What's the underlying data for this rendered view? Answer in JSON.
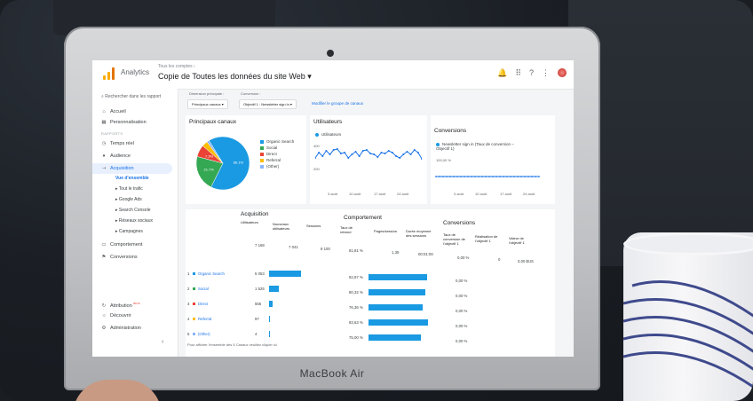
{
  "device": {
    "brand": "MacBook Air"
  },
  "topbar": {
    "app_name": "Analytics",
    "breadcrumb": "Tous les comptes  ›",
    "view_title": "Copie de Toutes les données du site Web ▾",
    "icons": [
      "notifications-icon",
      "apps-grid-icon",
      "help-icon",
      "more-vert-icon",
      "avatar"
    ]
  },
  "sidebar": {
    "search": "Rechercher dans les rapport",
    "section_rapports": "RAPPORTS",
    "items": [
      {
        "label": "Accueil",
        "icon": "home-icon"
      },
      {
        "label": "Personnalisation",
        "icon": "grid-icon"
      },
      {
        "label": "Temps réel",
        "icon": "clock-icon"
      },
      {
        "label": "Audience",
        "icon": "person-icon"
      },
      {
        "label": "Acquisition",
        "icon": "acquisition-icon"
      },
      {
        "label": "Comportement",
        "icon": "behavior-icon"
      },
      {
        "label": "Conversions",
        "icon": "flag-icon"
      }
    ],
    "acquisition_sub": [
      "Vue d'ensemble",
      "▸ Tout le trafic",
      "▸ Google Ads",
      "▸ Search Console",
      "▸ Réseaux sociaux",
      "▸ Campagnes"
    ],
    "bottom": [
      {
        "label": "Attribution",
        "badge": "BETA",
        "icon": "attribution-icon"
      },
      {
        "label": "Découvrir",
        "icon": "bulb-icon"
      },
      {
        "label": "Administration",
        "icon": "gear-icon"
      }
    ]
  },
  "controls": {
    "primary_dim_label": "Dimension principale :",
    "primary_dim_value": "Principaux canaux ▾",
    "conversion_label": "Conversion :",
    "conversion_value": "Objectif 1 : Newsletter sign in ▾",
    "modify_link": "Modifier le groupe de canaux"
  },
  "pie_card": {
    "title": "Principaux canaux",
    "legend": [
      {
        "label": "Organic Search",
        "color": "#1a9ae2"
      },
      {
        "label": "Social",
        "color": "#34a853"
      },
      {
        "label": "Direct",
        "color": "#ea4335"
      },
      {
        "label": "Referral",
        "color": "#fbbc04"
      },
      {
        "label": "(Other)",
        "color": "#8ab4f8"
      }
    ],
    "slices": [
      {
        "label": "Organic Search",
        "value": 66.1,
        "text": "66.1%"
      },
      {
        "label": "Social",
        "value": 21.7,
        "text": "21.7%"
      },
      {
        "label": "Direct",
        "value": 7.3,
        "text": "7.3%"
      },
      {
        "label": "Referral",
        "value": 3.5,
        "text": ""
      },
      {
        "label": "(Other)",
        "value": 1.4,
        "text": ""
      }
    ]
  },
  "users_card": {
    "title": "Utilisateurs",
    "legend": "Utilisateurs",
    "y_top": "400",
    "y_bottom": "200",
    "x_labels": [
      "3 août",
      "10 août",
      "17 août",
      "24 août"
    ],
    "values": [
      300,
      330,
      310,
      340,
      320,
      345,
      350,
      325,
      330,
      300,
      320,
      335,
      310,
      340,
      345,
      325,
      320,
      305,
      330,
      325,
      340,
      330,
      310,
      300,
      320,
      335,
      320,
      345,
      330,
      295
    ]
  },
  "conv_card": {
    "title": "Conversions",
    "legend": "Newsletter sign in (Taux de conversion – Objectif 1)",
    "y_top": "100,00 %",
    "x_labels": [
      "3 août",
      "10 août",
      "17 août",
      "24 août"
    ]
  },
  "table": {
    "acquisition_title": "Acquisition",
    "comportement_title": "Comportement",
    "conversions_title": "Conversions",
    "headers": {
      "utilisateurs": "Utilisateurs",
      "nouveaux": "Nouveaux utilisateurs",
      "sessions": "Sessions",
      "rebond": "Taux de rebond",
      "pages": "Pages/session",
      "duree": "Durée moyenne des sessions",
      "taux_conv": "Taux de conversion de l'objectif 1",
      "realisation": "Réalisation de l'objectif 1",
      "valeur": "Valeur de l'objectif 1"
    },
    "totals": {
      "utilisateurs": "7 168",
      "nouveaux": "7 041",
      "sessions": "8 100",
      "rebond": "81,81 %",
      "pages": "1,35",
      "duree": "00:01:00",
      "taux_conv": "0,00 %",
      "realisation": "0",
      "valeur": "0,00 $US"
    },
    "rows": [
      {
        "index": "1",
        "channel": "Organic Search",
        "color": "#1a9ae2",
        "users": "5 053",
        "users_pct": 100,
        "rebond": "82,87 %",
        "rebond_pct": 100,
        "conv": "0,00 %"
      },
      {
        "index": "2",
        "channel": "Social",
        "color": "#34a853",
        "users": "1 525",
        "users_pct": 30,
        "rebond": "80,32 %",
        "rebond_pct": 97,
        "conv": "0,00 %"
      },
      {
        "index": "3",
        "channel": "Direct",
        "color": "#ea4335",
        "users": "556",
        "users_pct": 11,
        "rebond": "76,36 %",
        "rebond_pct": 92,
        "conv": "0,00 %"
      },
      {
        "index": "4",
        "channel": "Referral",
        "color": "#fbbc04",
        "users": "97",
        "users_pct": 2,
        "rebond": "83,63 %",
        "rebond_pct": 101,
        "conv": "0,00 %"
      },
      {
        "index": "5",
        "channel": "(Other)",
        "color": "#8ab4f8",
        "users": "4",
        "users_pct": 1,
        "rebond": "75,00 %",
        "rebond_pct": 90,
        "conv": "0,00 %"
      }
    ],
    "footer": "Pour afficher l'ensemble des 5 Canaux veuillez cliquer ici"
  }
}
